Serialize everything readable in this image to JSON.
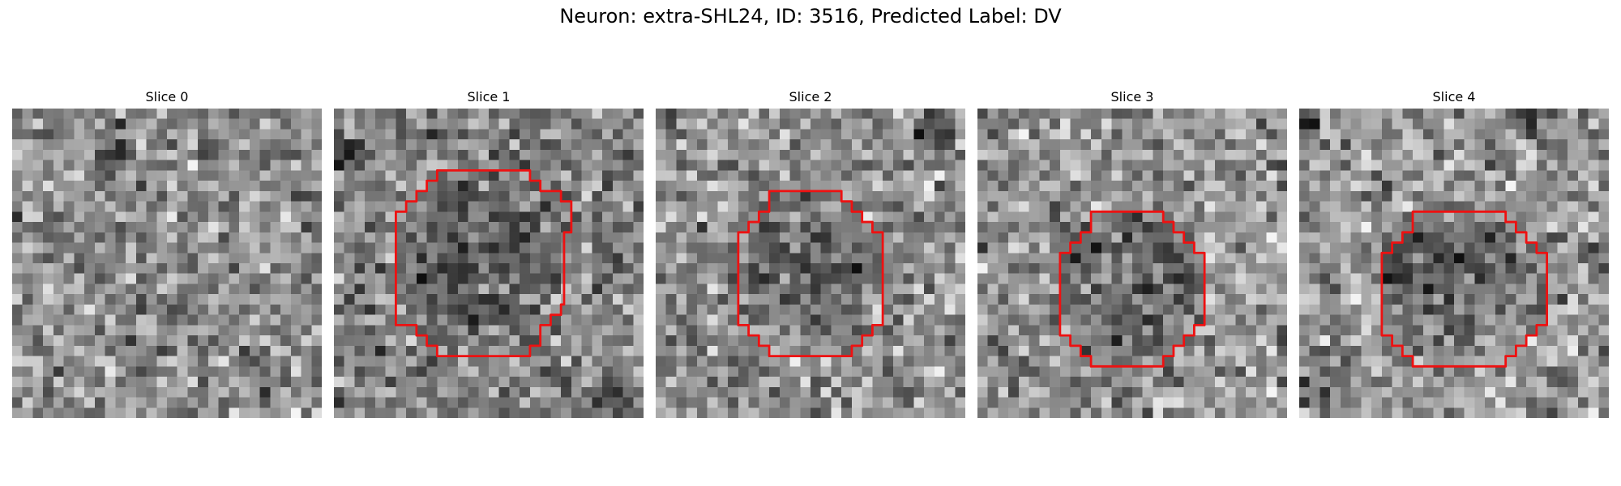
{
  "figure": {
    "title": "Neuron: extra-SHL24, ID: 3516, Predicted Label: DV",
    "colormap": "gray",
    "roi_contour_color": "#ee1111"
  },
  "panels": [
    {
      "title": "Slice 0",
      "seed": 11,
      "mean": 140,
      "blobs": [
        {
          "cx": 9.8,
          "cy": 5.0,
          "r": 2.0,
          "dark": 80
        },
        {
          "cx": 24.0,
          "cy": 12.0,
          "r": 4.0,
          "light": 30
        }
      ],
      "roi": null
    },
    {
      "title": "Slice 1",
      "seed": 23,
      "mean": 135,
      "blobs": [
        {
          "cx": 14.0,
          "cy": 14.0,
          "r": 8.5,
          "dark": 55
        },
        {
          "cx": 1.5,
          "cy": 4.5,
          "r": 2.2,
          "dark": 90
        },
        {
          "cx": 27.5,
          "cy": 28.0,
          "r": 2.0,
          "dark": 70
        }
      ],
      "roi": [
        [
          10,
          6
        ],
        [
          19,
          6
        ],
        [
          19,
          7
        ],
        [
          20,
          7
        ],
        [
          20,
          8
        ],
        [
          22,
          8
        ],
        [
          22,
          9
        ],
        [
          23,
          9
        ],
        [
          23,
          12
        ],
        [
          22.3,
          12
        ],
        [
          22.3,
          19
        ],
        [
          22,
          19
        ],
        [
          22,
          20
        ],
        [
          21,
          20
        ],
        [
          21,
          21
        ],
        [
          20,
          21
        ],
        [
          20,
          23
        ],
        [
          19,
          23
        ],
        [
          19,
          24
        ],
        [
          16,
          24
        ],
        [
          10,
          24
        ],
        [
          10,
          23
        ],
        [
          9,
          23
        ],
        [
          9,
          22
        ],
        [
          8,
          22
        ],
        [
          8,
          21
        ],
        [
          6,
          21
        ],
        [
          6,
          10
        ],
        [
          7,
          10
        ],
        [
          7,
          9
        ],
        [
          8,
          9
        ],
        [
          8,
          8
        ],
        [
          9,
          8
        ],
        [
          9,
          7
        ],
        [
          10,
          7
        ]
      ]
    },
    {
      "title": "Slice 2",
      "seed": 37,
      "mean": 145,
      "blobs": [
        {
          "cx": 14.5,
          "cy": 15.0,
          "r": 7.5,
          "dark": 45
        },
        {
          "cx": 27.0,
          "cy": 2.5,
          "r": 2.5,
          "dark": 70
        }
      ],
      "roi": [
        [
          11,
          8
        ],
        [
          18,
          8
        ],
        [
          18,
          9
        ],
        [
          19,
          9
        ],
        [
          19,
          10
        ],
        [
          20,
          10
        ],
        [
          20,
          11
        ],
        [
          21,
          11
        ],
        [
          21,
          12
        ],
        [
          22,
          12
        ],
        [
          22,
          21
        ],
        [
          21,
          21
        ],
        [
          21,
          22
        ],
        [
          20,
          22
        ],
        [
          20,
          23
        ],
        [
          19,
          23
        ],
        [
          19,
          24
        ],
        [
          11,
          24
        ],
        [
          11,
          23
        ],
        [
          10,
          23
        ],
        [
          10,
          22
        ],
        [
          9,
          22
        ],
        [
          9,
          21
        ],
        [
          8,
          21
        ],
        [
          8,
          12
        ],
        [
          9,
          12
        ],
        [
          9,
          11
        ],
        [
          10,
          11
        ],
        [
          10,
          10
        ],
        [
          11,
          10
        ]
      ]
    },
    {
      "title": "Slice 3",
      "seed": 53,
      "mean": 150,
      "blobs": [
        {
          "cx": 15.0,
          "cy": 17.0,
          "r": 7.5,
          "dark": 55
        },
        {
          "cx": 18.5,
          "cy": 28.5,
          "r": 2.0,
          "light": 40
        }
      ],
      "roi": [
        [
          11,
          10
        ],
        [
          18,
          10
        ],
        [
          18,
          11
        ],
        [
          19,
          11
        ],
        [
          19,
          12
        ],
        [
          20,
          12
        ],
        [
          20,
          13
        ],
        [
          21,
          13
        ],
        [
          21,
          14
        ],
        [
          22,
          14
        ],
        [
          22,
          21
        ],
        [
          21,
          21
        ],
        [
          21,
          22
        ],
        [
          20,
          22
        ],
        [
          20,
          23
        ],
        [
          19,
          23
        ],
        [
          19,
          24
        ],
        [
          18,
          24
        ],
        [
          18,
          25
        ],
        [
          11,
          25
        ],
        [
          11,
          24
        ],
        [
          10,
          24
        ],
        [
          10,
          23
        ],
        [
          9,
          23
        ],
        [
          9,
          22
        ],
        [
          8,
          22
        ],
        [
          8,
          14
        ],
        [
          9,
          14
        ],
        [
          9,
          13
        ],
        [
          10,
          13
        ],
        [
          10,
          12
        ],
        [
          11,
          12
        ]
      ]
    },
    {
      "title": "Slice 4",
      "seed": 71,
      "mean": 150,
      "blobs": [
        {
          "cx": 14.5,
          "cy": 16.0,
          "r": 7.0,
          "dark": 70
        },
        {
          "cx": 23.0,
          "cy": 0.8,
          "r": 2.0,
          "dark": 90
        },
        {
          "cx": 1.0,
          "cy": 1.0,
          "r": 1.5,
          "dark": 80
        },
        {
          "cx": 3.0,
          "cy": 26.0,
          "r": 3.0,
          "dark": 45
        }
      ],
      "roi": [
        [
          11,
          10
        ],
        [
          20,
          10
        ],
        [
          20,
          11
        ],
        [
          21,
          11
        ],
        [
          21,
          12
        ],
        [
          22,
          12
        ],
        [
          22,
          13
        ],
        [
          23,
          13
        ],
        [
          23,
          14
        ],
        [
          24,
          14
        ],
        [
          24,
          21
        ],
        [
          23,
          21
        ],
        [
          23,
          22
        ],
        [
          22,
          22
        ],
        [
          22,
          23
        ],
        [
          21,
          23
        ],
        [
          21,
          24
        ],
        [
          20,
          24
        ],
        [
          20,
          25
        ],
        [
          11,
          25
        ],
        [
          11,
          24
        ],
        [
          10,
          24
        ],
        [
          10,
          23
        ],
        [
          9,
          23
        ],
        [
          9,
          22
        ],
        [
          8,
          22
        ],
        [
          8,
          14
        ],
        [
          9,
          14
        ],
        [
          9,
          13
        ],
        [
          10,
          13
        ],
        [
          10,
          12
        ],
        [
          11,
          12
        ]
      ]
    }
  ]
}
